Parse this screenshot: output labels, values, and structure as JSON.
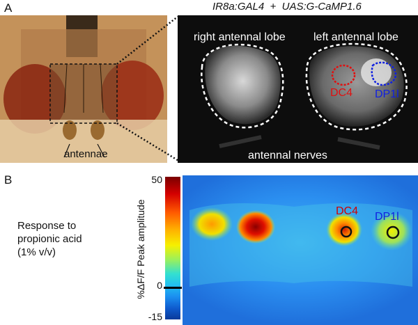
{
  "panel_a": {
    "letter": "A",
    "genotype": "IR8a:GAL4  +  UAS:G-CaMP1.6",
    "antennae_label": "antennae",
    "right_lobe": "right antennal lobe",
    "left_lobe": "left antennal lobe",
    "dc4": "DC4",
    "dp1l": "DP1l",
    "nerves": "antennal nerves"
  },
  "panel_b": {
    "letter": "B",
    "response_line1": "Response to",
    "response_line2": "propionic acid",
    "response_line3": "(1% v/v)",
    "colorbar_label": "%ΔF/F Peak amplitude",
    "tick_max": "50",
    "tick_zero": "0",
    "tick_min": "-15",
    "dc4": "DC4",
    "dp1l": "DP1l"
  },
  "colors": {
    "dc4_outline": "#e01010",
    "dp1l_outline": "#1020e0",
    "dashed": "#ffffff"
  }
}
